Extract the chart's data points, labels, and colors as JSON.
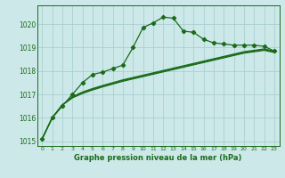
{
  "title": "Graphe pression niveau de la mer (hPa)",
  "background_color": "#cce8e8",
  "grid_color": "#aacfcf",
  "line_color": "#1a6b1a",
  "xlim": [
    -0.5,
    23.5
  ],
  "ylim": [
    1014.8,
    1020.8
  ],
  "yticks": [
    1015,
    1016,
    1017,
    1018,
    1019,
    1020
  ],
  "xticks": [
    0,
    1,
    2,
    3,
    4,
    5,
    6,
    7,
    8,
    9,
    10,
    11,
    12,
    13,
    14,
    15,
    16,
    17,
    18,
    19,
    20,
    21,
    22,
    23
  ],
  "series": {
    "main": [
      1015.1,
      1016.0,
      1016.5,
      1017.0,
      1017.5,
      1017.85,
      1017.95,
      1018.1,
      1018.25,
      1019.0,
      1019.85,
      1020.05,
      1020.3,
      1020.25,
      1019.7,
      1019.65,
      1019.35,
      1019.2,
      1019.15,
      1019.1,
      1019.1,
      1019.1,
      1019.05,
      1018.85
    ],
    "smooth1": [
      1015.1,
      1016.0,
      1016.55,
      1016.9,
      1017.1,
      1017.25,
      1017.38,
      1017.5,
      1017.62,
      1017.72,
      1017.82,
      1017.92,
      1018.02,
      1018.12,
      1018.22,
      1018.32,
      1018.42,
      1018.52,
      1018.62,
      1018.72,
      1018.82,
      1018.88,
      1018.94,
      1018.85
    ],
    "smooth2": [
      1015.1,
      1016.0,
      1016.55,
      1016.87,
      1017.07,
      1017.22,
      1017.35,
      1017.47,
      1017.59,
      1017.69,
      1017.79,
      1017.89,
      1017.99,
      1018.09,
      1018.19,
      1018.29,
      1018.39,
      1018.49,
      1018.59,
      1018.69,
      1018.79,
      1018.85,
      1018.91,
      1018.82
    ],
    "smooth3": [
      1015.1,
      1016.0,
      1016.55,
      1016.85,
      1017.04,
      1017.19,
      1017.32,
      1017.44,
      1017.56,
      1017.66,
      1017.76,
      1017.86,
      1017.96,
      1018.06,
      1018.16,
      1018.26,
      1018.36,
      1018.46,
      1018.56,
      1018.66,
      1018.76,
      1018.82,
      1018.88,
      1018.79
    ]
  }
}
